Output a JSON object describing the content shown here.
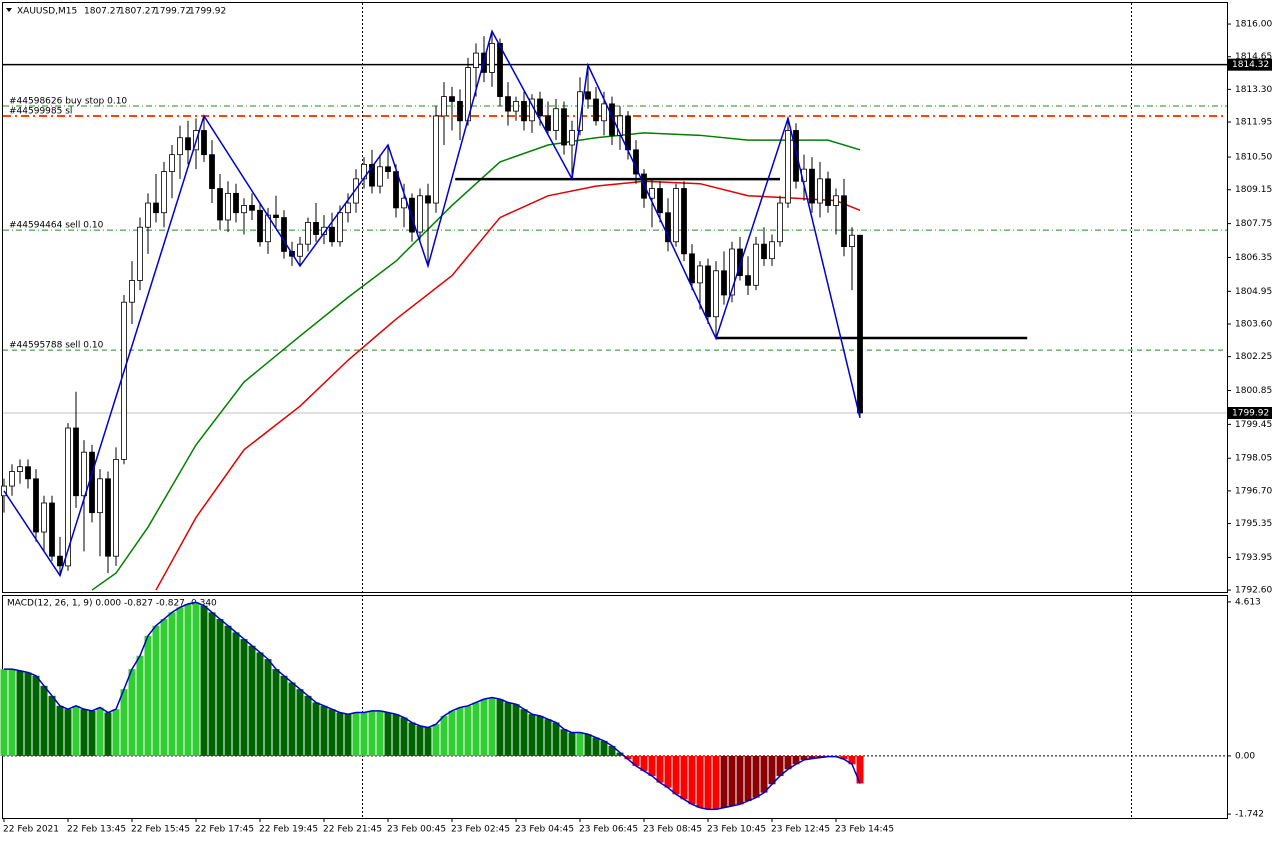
{
  "chart_data": {
    "type": "candlestick",
    "symbol": "XAUUSD,M15",
    "ylim": [
      1792.52,
      1816.87
    ],
    "yticks": [
      {
        "value": 1816.0,
        "label": "1816.00"
      },
      {
        "value": 1814.65,
        "label": "1814.65"
      },
      {
        "value": 1813.3,
        "label": "1813.30"
      },
      {
        "value": 1811.95,
        "label": "1811.95"
      },
      {
        "value": 1810.5,
        "label": "1810.50"
      },
      {
        "value": 1809.15,
        "label": "1809.15"
      },
      {
        "value": 1807.75,
        "label": "1807.75"
      },
      {
        "value": 1806.35,
        "label": "1806.35"
      },
      {
        "value": 1804.95,
        "label": "1804.95"
      },
      {
        "value": 1803.6,
        "label": "1803.60"
      },
      {
        "value": 1802.25,
        "label": "1802.25"
      },
      {
        "value": 1800.85,
        "label": "1800.85"
      },
      {
        "value": 1799.45,
        "label": "1799.45"
      },
      {
        "value": 1798.05,
        "label": "1798.05"
      },
      {
        "value": 1796.7,
        "label": "1796.70"
      },
      {
        "value": 1795.35,
        "label": "1795.35"
      },
      {
        "value": 1793.95,
        "label": "1793.95"
      },
      {
        "value": 1792.6,
        "label": "1792.60"
      }
    ],
    "xticks": [
      {
        "value": 0,
        "label": "22 Feb 2021"
      },
      {
        "value": 8,
        "label": "22 Feb 13:45"
      },
      {
        "value": 16,
        "label": "22 Feb 15:45"
      },
      {
        "value": 24,
        "label": "22 Feb 17:45"
      },
      {
        "value": 32,
        "label": "22 Feb 19:45"
      },
      {
        "value": 40,
        "label": "22 Feb 21:45"
      },
      {
        "value": 48,
        "label": "23 Feb 00:45"
      },
      {
        "value": 56,
        "label": "23 Feb 02:45"
      },
      {
        "value": 64,
        "label": "23 Feb 04:45"
      },
      {
        "value": 72,
        "label": "23 Feb 06:45"
      },
      {
        "value": 80,
        "label": "23 Feb 08:45"
      },
      {
        "value": 88,
        "label": "23 Feb 10:45"
      },
      {
        "value": 96,
        "label": "23 Feb 12:45"
      },
      {
        "value": 104,
        "label": "23 Feb 14:45"
      }
    ],
    "candle_colors": {
      "up": "#ffffff",
      "down": "#000000",
      "outline": "#000000"
    },
    "candles": [
      [
        1796.5,
        1797.2,
        1795.8,
        1796.9
      ],
      [
        1796.9,
        1797.8,
        1796.5,
        1797.5
      ],
      [
        1797.5,
        1798.0,
        1797.0,
        1797.7
      ],
      [
        1797.7,
        1798.0,
        1796.8,
        1797.2
      ],
      [
        1797.2,
        1797.6,
        1794.6,
        1795.0
      ],
      [
        1795.0,
        1796.5,
        1794.2,
        1796.2
      ],
      [
        1796.2,
        1796.5,
        1793.8,
        1794.0
      ],
      [
        1794.0,
        1794.8,
        1793.2,
        1793.6
      ],
      [
        1793.6,
        1799.5,
        1793.4,
        1799.3
      ],
      [
        1799.3,
        1800.8,
        1796.0,
        1796.5
      ],
      [
        1796.5,
        1798.8,
        1794.2,
        1798.3
      ],
      [
        1798.3,
        1798.6,
        1795.4,
        1795.8
      ],
      [
        1795.8,
        1797.6,
        1794.0,
        1797.2
      ],
      [
        1797.2,
        1797.5,
        1793.3,
        1794.0
      ],
      [
        1794.0,
        1798.5,
        1793.6,
        1798.0
      ],
      [
        1798.0,
        1804.8,
        1797.8,
        1804.5
      ],
      [
        1804.5,
        1806.2,
        1803.6,
        1805.4
      ],
      [
        1805.4,
        1808.0,
        1805.0,
        1807.6
      ],
      [
        1807.6,
        1809.0,
        1806.5,
        1808.6
      ],
      [
        1808.6,
        1809.8,
        1807.8,
        1808.2
      ],
      [
        1808.2,
        1810.3,
        1807.6,
        1809.9
      ],
      [
        1809.9,
        1811.0,
        1808.8,
        1810.6
      ],
      [
        1810.6,
        1811.8,
        1809.6,
        1811.3
      ],
      [
        1811.3,
        1812.0,
        1810.2,
        1810.8
      ],
      [
        1810.8,
        1812.1,
        1810.0,
        1811.6
      ],
      [
        1811.6,
        1812.2,
        1810.3,
        1810.6
      ],
      [
        1810.6,
        1811.2,
        1808.6,
        1809.2
      ],
      [
        1809.2,
        1809.8,
        1807.5,
        1807.9
      ],
      [
        1807.9,
        1809.5,
        1807.4,
        1809.0
      ],
      [
        1809.0,
        1809.4,
        1807.8,
        1808.2
      ],
      [
        1808.2,
        1808.8,
        1807.3,
        1808.5
      ],
      [
        1808.5,
        1809.0,
        1807.9,
        1808.3
      ],
      [
        1808.3,
        1808.6,
        1806.8,
        1807.0
      ],
      [
        1807.0,
        1808.4,
        1806.5,
        1808.1
      ],
      [
        1808.1,
        1808.9,
        1807.6,
        1808.0
      ],
      [
        1808.0,
        1808.3,
        1806.3,
        1806.6
      ],
      [
        1806.6,
        1807.0,
        1806.0,
        1806.4
      ],
      [
        1806.4,
        1807.2,
        1806.0,
        1806.9
      ],
      [
        1806.9,
        1808.0,
        1806.6,
        1807.8
      ],
      [
        1807.8,
        1808.6,
        1807.0,
        1807.3
      ],
      [
        1807.3,
        1808.1,
        1806.9,
        1807.6
      ],
      [
        1807.6,
        1808.2,
        1806.8,
        1807.0
      ],
      [
        1807.0,
        1808.5,
        1806.8,
        1808.2
      ],
      [
        1808.2,
        1809.0,
        1807.8,
        1808.6
      ],
      [
        1808.6,
        1810.0,
        1808.2,
        1809.6
      ],
      [
        1809.6,
        1810.5,
        1809.2,
        1810.2
      ],
      [
        1810.2,
        1810.8,
        1809.0,
        1809.3
      ],
      [
        1809.3,
        1810.6,
        1809.0,
        1810.1
      ],
      [
        1810.1,
        1811.0,
        1809.6,
        1809.9
      ],
      [
        1809.9,
        1810.2,
        1808.0,
        1808.4
      ],
      [
        1808.4,
        1809.4,
        1807.6,
        1808.8
      ],
      [
        1808.8,
        1809.0,
        1807.0,
        1807.4
      ],
      [
        1807.4,
        1809.2,
        1807.0,
        1808.9
      ],
      [
        1808.9,
        1809.4,
        1806.0,
        1808.6
      ],
      [
        1808.6,
        1812.6,
        1808.2,
        1812.2
      ],
      [
        1812.2,
        1813.6,
        1811.0,
        1813.0
      ],
      [
        1813.0,
        1813.4,
        1811.6,
        1812.8
      ],
      [
        1812.8,
        1813.3,
        1811.2,
        1812.0
      ],
      [
        1812.0,
        1814.6,
        1811.8,
        1814.2
      ],
      [
        1814.2,
        1815.2,
        1813.0,
        1814.8
      ],
      [
        1814.8,
        1815.5,
        1813.6,
        1814.0
      ],
      [
        1814.0,
        1815.7,
        1813.4,
        1815.2
      ],
      [
        1815.2,
        1815.4,
        1812.6,
        1813.0
      ],
      [
        1813.0,
        1813.6,
        1811.8,
        1812.4
      ],
      [
        1812.4,
        1813.0,
        1812.0,
        1812.8
      ],
      [
        1812.8,
        1813.2,
        1811.6,
        1812.0
      ],
      [
        1812.0,
        1813.1,
        1811.5,
        1812.9
      ],
      [
        1812.9,
        1813.2,
        1811.8,
        1812.2
      ],
      [
        1812.2,
        1812.8,
        1811.4,
        1811.6
      ],
      [
        1811.6,
        1812.9,
        1811.2,
        1812.5
      ],
      [
        1812.5,
        1812.8,
        1810.6,
        1811.0
      ],
      [
        1811.0,
        1812.0,
        1809.6,
        1811.6
      ],
      [
        1811.6,
        1813.8,
        1811.4,
        1813.2
      ],
      [
        1813.2,
        1814.3,
        1812.5,
        1812.9
      ],
      [
        1812.9,
        1813.4,
        1811.8,
        1812.0
      ],
      [
        1812.0,
        1813.2,
        1811.4,
        1812.7
      ],
      [
        1812.7,
        1813.0,
        1811.0,
        1811.4
      ],
      [
        1811.4,
        1812.6,
        1810.8,
        1812.2
      ],
      [
        1812.2,
        1812.4,
        1810.4,
        1810.8
      ],
      [
        1810.8,
        1811.2,
        1809.4,
        1809.8
      ],
      [
        1809.8,
        1810.0,
        1808.4,
        1808.8
      ],
      [
        1808.8,
        1809.6,
        1807.6,
        1809.2
      ],
      [
        1809.2,
        1809.5,
        1807.8,
        1808.2
      ],
      [
        1808.2,
        1808.8,
        1806.6,
        1807.0
      ],
      [
        1807.0,
        1809.4,
        1806.8,
        1809.2
      ],
      [
        1809.2,
        1809.5,
        1806.2,
        1806.5
      ],
      [
        1806.5,
        1806.9,
        1805.0,
        1805.3
      ],
      [
        1805.3,
        1806.2,
        1804.2,
        1806.0
      ],
      [
        1806.0,
        1806.3,
        1803.6,
        1803.9
      ],
      [
        1803.9,
        1806.2,
        1803.0,
        1805.8
      ],
      [
        1805.8,
        1806.6,
        1804.4,
        1804.8
      ],
      [
        1804.8,
        1807.0,
        1804.5,
        1806.7
      ],
      [
        1806.7,
        1807.2,
        1805.4,
        1805.6
      ],
      [
        1805.6,
        1806.4,
        1804.8,
        1805.2
      ],
      [
        1805.2,
        1807.2,
        1805.0,
        1806.9
      ],
      [
        1806.9,
        1807.6,
        1806.0,
        1806.3
      ],
      [
        1806.3,
        1807.3,
        1806.0,
        1807.0
      ],
      [
        1807.0,
        1808.9,
        1806.8,
        1808.6
      ],
      [
        1808.6,
        1812.1,
        1808.4,
        1811.6
      ],
      [
        1811.6,
        1811.9,
        1809.2,
        1809.5
      ],
      [
        1809.5,
        1810.6,
        1808.7,
        1810.0
      ],
      [
        1810.0,
        1810.5,
        1808.2,
        1808.6
      ],
      [
        1808.6,
        1810.3,
        1808.0,
        1809.6
      ],
      [
        1809.6,
        1809.9,
        1808.2,
        1808.5
      ],
      [
        1808.5,
        1809.2,
        1807.3,
        1808.9
      ],
      [
        1808.9,
        1809.6,
        1806.4,
        1806.8
      ],
      [
        1806.8,
        1807.6,
        1805.0,
        1807.27
      ],
      [
        1807.27,
        1807.27,
        1799.72,
        1799.92
      ]
    ],
    "moving_averages": [
      {
        "color": "#008000",
        "x": [
          11,
          14,
          18,
          24,
          30,
          37,
          43,
          49,
          56,
          62,
          68,
          74,
          80,
          87,
          93,
          99,
          103,
          107
        ],
        "values": [
          1792.6,
          1793.3,
          1795.2,
          1798.6,
          1801.2,
          1803.1,
          1804.7,
          1806.2,
          1808.5,
          1810.3,
          1811.0,
          1811.3,
          1811.5,
          1811.4,
          1811.2,
          1811.2,
          1811.2,
          1810.8
        ]
      },
      {
        "color": "#e00000",
        "x": [
          19,
          24,
          30,
          37,
          43,
          49,
          56,
          62,
          68,
          74,
          80,
          87,
          93,
          99,
          104,
          107
        ],
        "values": [
          1792.6,
          1795.6,
          1798.4,
          1800.2,
          1802.1,
          1803.8,
          1805.6,
          1808.0,
          1808.9,
          1809.3,
          1809.5,
          1809.4,
          1808.9,
          1808.8,
          1808.7,
          1808.3
        ]
      }
    ],
    "zigzag": {
      "color": "#0000cc",
      "x": [
        0,
        7,
        25,
        37,
        48,
        53,
        61,
        71,
        73,
        89,
        98,
        107
      ],
      "values": [
        1796.7,
        1793.2,
        1812.2,
        1806.0,
        1811.0,
        1806.0,
        1815.7,
        1809.6,
        1814.3,
        1803.0,
        1812.1,
        1799.72
      ]
    },
    "levels": [
      {
        "value": 1814.32,
        "color": "#000000",
        "dash": "none",
        "width": 1.5,
        "price_box": true
      },
      {
        "value": 1812.61,
        "color": "#228b22",
        "dash": "6 3 1 3",
        "width": 1,
        "label": "#44598626 buy stop 0.10"
      },
      {
        "value": 1812.2,
        "color": "#ff4500",
        "dash": "8 4 2 4",
        "width": 2,
        "label": "#44599985 sl"
      },
      {
        "value": 1807.48,
        "color": "#228b22",
        "dash": "6 3 1 3",
        "width": 1,
        "label": "#44594464 sell 0.10"
      },
      {
        "value": 1802.52,
        "color": "#228b22",
        "dash": "5 4",
        "width": 1,
        "label": "#44595788 sell 0.10"
      }
    ],
    "current_price_line": {
      "color": "#c0c0c0"
    },
    "trend_lines": [
      {
        "x": [
          56.4,
          97
        ],
        "value": 1809.59,
        "color": "#000000"
      },
      {
        "x": [
          89,
          127.9
        ],
        "value": 1803.02,
        "color": "#000000"
      }
    ],
    "macd": {
      "label": "MACD(12, 26, 1, 9) 0.000 -0.827 -0.827 -0.340",
      "ylim": [
        -1.86,
        4.79
      ],
      "yticks": [
        {
          "value": 4.613,
          "label": "4.613"
        },
        {
          "value": 0,
          "label": "0.00"
        },
        {
          "value": -1.742,
          "label": "-1.742"
        }
      ],
      "colors": {
        "up_pos": "#32cd32",
        "down_pos": "#006400",
        "down_neg": "#ff0000",
        "up_neg": "#8b0000"
      },
      "line_color": "#0000cc",
      "values": [
        2.6,
        2.6,
        2.55,
        2.5,
        2.4,
        2.1,
        1.8,
        1.5,
        1.4,
        1.5,
        1.4,
        1.35,
        1.45,
        1.3,
        1.4,
        2.0,
        2.6,
        3.0,
        3.6,
        3.9,
        4.1,
        4.3,
        4.45,
        4.55,
        4.6,
        4.5,
        4.3,
        4.1,
        3.9,
        3.7,
        3.5,
        3.3,
        3.1,
        2.9,
        2.6,
        2.4,
        2.2,
        2.0,
        1.8,
        1.6,
        1.5,
        1.4,
        1.3,
        1.25,
        1.3,
        1.3,
        1.35,
        1.35,
        1.3,
        1.25,
        1.15,
        1.0,
        0.9,
        0.85,
        0.95,
        1.2,
        1.35,
        1.45,
        1.5,
        1.6,
        1.7,
        1.75,
        1.7,
        1.6,
        1.55,
        1.4,
        1.25,
        1.2,
        1.1,
        1.0,
        0.8,
        0.7,
        0.7,
        0.65,
        0.55,
        0.45,
        0.3,
        0.1,
        -0.1,
        -0.3,
        -0.45,
        -0.6,
        -0.8,
        -0.95,
        -1.15,
        -1.3,
        -1.45,
        -1.55,
        -1.6,
        -1.6,
        -1.55,
        -1.5,
        -1.45,
        -1.35,
        -1.25,
        -1.1,
        -0.85,
        -0.6,
        -0.4,
        -0.25,
        -0.12,
        -0.08,
        -0.05,
        -0.02,
        -0.02,
        -0.1,
        -0.25,
        -0.827
      ]
    }
  }
}
